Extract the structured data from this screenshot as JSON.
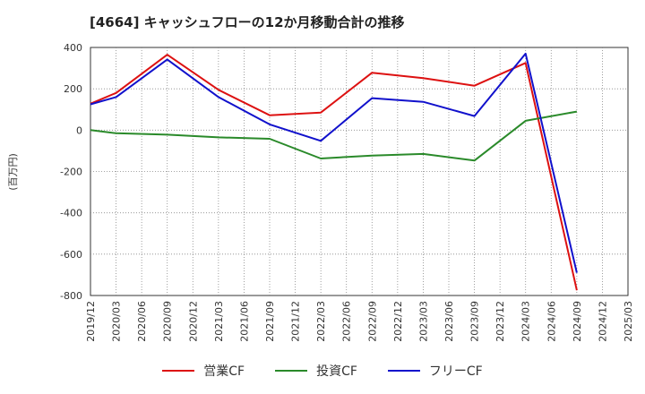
{
  "chart_data": {
    "type": "line",
    "title": "[4664]  キャッシュフローの12か月移動合計の推移",
    "ylabel": "(百万円)",
    "xlabel": "",
    "ylim": [
      -800,
      400
    ],
    "yticks": [
      400,
      200,
      0,
      -200,
      -400,
      -600,
      -800
    ],
    "ytick_labels": [
      "400",
      "200",
      "0",
      "-200",
      "-400",
      "-600",
      "-800"
    ],
    "categories": [
      "2019/12",
      "2020/03",
      "2020/06",
      "2020/09",
      "2020/12",
      "2021/03",
      "2021/06",
      "2021/09",
      "2021/12",
      "2022/03",
      "2022/06",
      "2022/09",
      "2022/12",
      "2023/03",
      "2023/06",
      "2023/09",
      "2023/12",
      "2024/03",
      "2024/06",
      "2024/09",
      "2024/12",
      "2025/03"
    ],
    "grid": true,
    "legend_position": "bottom",
    "series": [
      {
        "name": "営業CF",
        "color": "#dd1111",
        "values": [
          128,
          180,
          null,
          365,
          null,
          195,
          null,
          72,
          null,
          85,
          null,
          278,
          null,
          252,
          null,
          215,
          null,
          325,
          null,
          -775,
          null,
          null
        ]
      },
      {
        "name": "投資CF",
        "color": "#2a8a2a",
        "values": [
          0,
          -15,
          null,
          -22,
          null,
          -35,
          null,
          -42,
          null,
          -137,
          null,
          -123,
          null,
          -115,
          null,
          -147,
          null,
          45,
          null,
          90,
          null,
          null
        ]
      },
      {
        "name": "フリーCF",
        "color": "#1111cc",
        "values": [
          125,
          160,
          null,
          342,
          null,
          160,
          null,
          28,
          null,
          -52,
          null,
          155,
          null,
          137,
          null,
          68,
          null,
          370,
          null,
          -690,
          null,
          null
        ]
      }
    ]
  }
}
